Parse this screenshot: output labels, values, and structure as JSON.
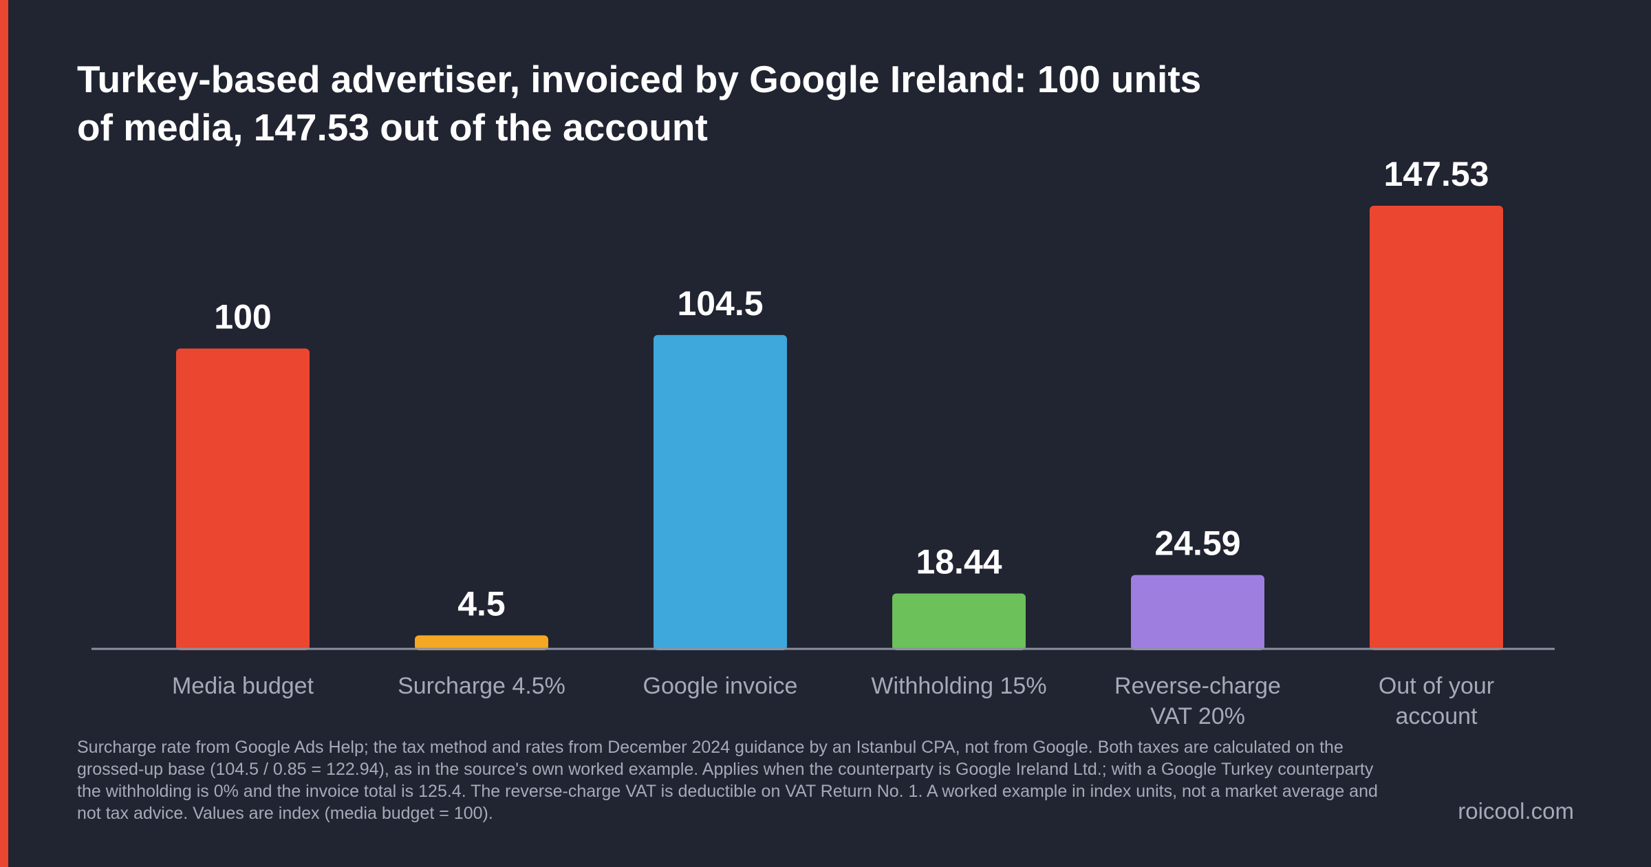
{
  "title": "Turkey-based advertiser, invoiced by Google Ireland: 100 units of media, 147.53 out of the account",
  "chart_data": {
    "type": "bar",
    "categories": [
      [
        "Media budget"
      ],
      [
        "Surcharge 4.5%"
      ],
      [
        "Google invoice"
      ],
      [
        "Withholding 15%"
      ],
      [
        "Reverse-charge",
        "VAT 20%"
      ],
      [
        "Out of your",
        "account"
      ]
    ],
    "values": [
      100,
      4.5,
      104.5,
      18.44,
      24.59,
      147.53
    ],
    "data_labels": [
      "100",
      "4.5",
      "104.5",
      "18.44",
      "24.59",
      "147.53"
    ],
    "colors": [
      "#eb4630",
      "#f3a722",
      "#3ea7dc",
      "#6cc15a",
      "#9e7fdf",
      "#eb4630"
    ],
    "ylim": [
      0,
      147.53
    ],
    "grid": false,
    "legend": "none",
    "xlabel": "",
    "ylabel": ""
  },
  "footnote": "Surcharge rate from Google Ads Help; the tax method and rates from December 2024 guidance by an Istanbul CPA, not from Google. Both taxes are calculated on the grossed-up base (104.5 / 0.85 = 122.94), as in the source's own worked example. Applies when the counterparty is Google Ireland Ltd.; with a Google Turkey counterparty the withholding is 0% and the invoice total is 125.4. The reverse-charge VAT is deductible on VAT Return No. 1. A worked example in index units, not a market average and not tax advice. Values are index (media budget = 100).",
  "brand": "roicool.com",
  "colors": {
    "background": "#212431",
    "accent": "#eb4630",
    "axis": "#8c90a0",
    "muted_text": "#a6aab8"
  }
}
